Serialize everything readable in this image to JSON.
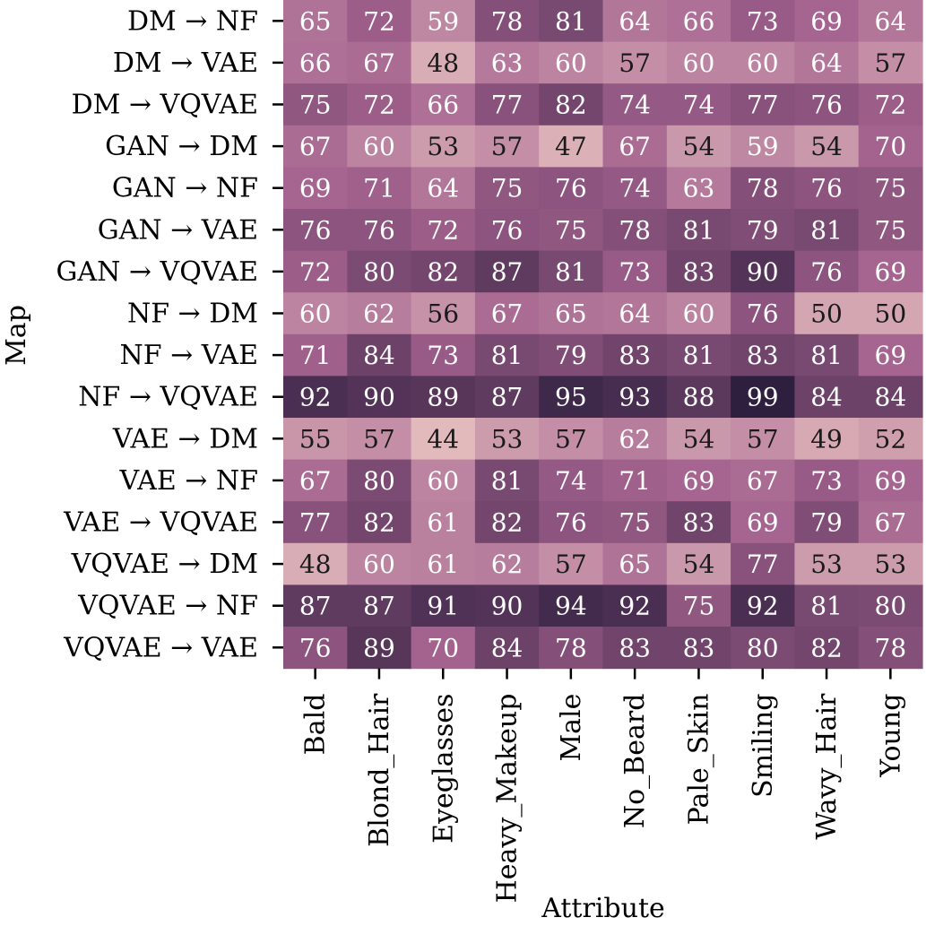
{
  "chart_data": {
    "type": "heatmap",
    "title": "",
    "xlabel": "Attribute",
    "ylabel": "Map",
    "columns": [
      "Bald",
      "Blond_Hair",
      "Eyeglasses",
      "Heavy_Makeup",
      "Male",
      "No_Beard",
      "Pale_Skin",
      "Smiling",
      "Wavy_Hair",
      "Young"
    ],
    "rows": [
      "DM → NF",
      "DM → VAE",
      "DM → VQVAE",
      "GAN → DM",
      "GAN → NF",
      "GAN → VAE",
      "GAN → VQVAE",
      "NF → DM",
      "NF → VAE",
      "NF → VQVAE",
      "VAE → DM",
      "VAE → NF",
      "VAE → VQVAE",
      "VQVAE → DM",
      "VQVAE → NF",
      "VQVAE → VAE"
    ],
    "values": [
      [
        65,
        72,
        59,
        78,
        81,
        64,
        66,
        73,
        69,
        64
      ],
      [
        66,
        67,
        48,
        63,
        60,
        57,
        60,
        60,
        64,
        57
      ],
      [
        75,
        72,
        66,
        77,
        82,
        74,
        74,
        77,
        76,
        72
      ],
      [
        67,
        60,
        53,
        57,
        47,
        67,
        54,
        59,
        54,
        70
      ],
      [
        69,
        71,
        64,
        75,
        76,
        74,
        63,
        78,
        76,
        75
      ],
      [
        76,
        76,
        72,
        76,
        75,
        78,
        81,
        79,
        81,
        75
      ],
      [
        72,
        80,
        82,
        87,
        81,
        73,
        83,
        90,
        76,
        69
      ],
      [
        60,
        62,
        56,
        67,
        65,
        64,
        60,
        76,
        50,
        50
      ],
      [
        71,
        84,
        73,
        81,
        79,
        83,
        81,
        83,
        81,
        69
      ],
      [
        92,
        90,
        89,
        87,
        95,
        93,
        88,
        99,
        84,
        84
      ],
      [
        55,
        57,
        44,
        53,
        57,
        62,
        54,
        57,
        49,
        52
      ],
      [
        67,
        80,
        60,
        81,
        74,
        71,
        69,
        67,
        73,
        69
      ],
      [
        77,
        82,
        61,
        82,
        76,
        75,
        83,
        69,
        79,
        67
      ],
      [
        48,
        60,
        61,
        62,
        57,
        65,
        54,
        77,
        53,
        53
      ],
      [
        87,
        87,
        91,
        90,
        94,
        92,
        75,
        92,
        81,
        80
      ],
      [
        76,
        89,
        70,
        84,
        78,
        83,
        83,
        80,
        82,
        78
      ]
    ],
    "vmin": 40,
    "vmax": 100,
    "colormap": {
      "low": "#ecc8c3",
      "mid": "#a4628f",
      "high": "#2b1d3c"
    },
    "text_color_light": "#ffffff",
    "text_color_dark": "#1a1a1a",
    "text_threshold": 58
  }
}
